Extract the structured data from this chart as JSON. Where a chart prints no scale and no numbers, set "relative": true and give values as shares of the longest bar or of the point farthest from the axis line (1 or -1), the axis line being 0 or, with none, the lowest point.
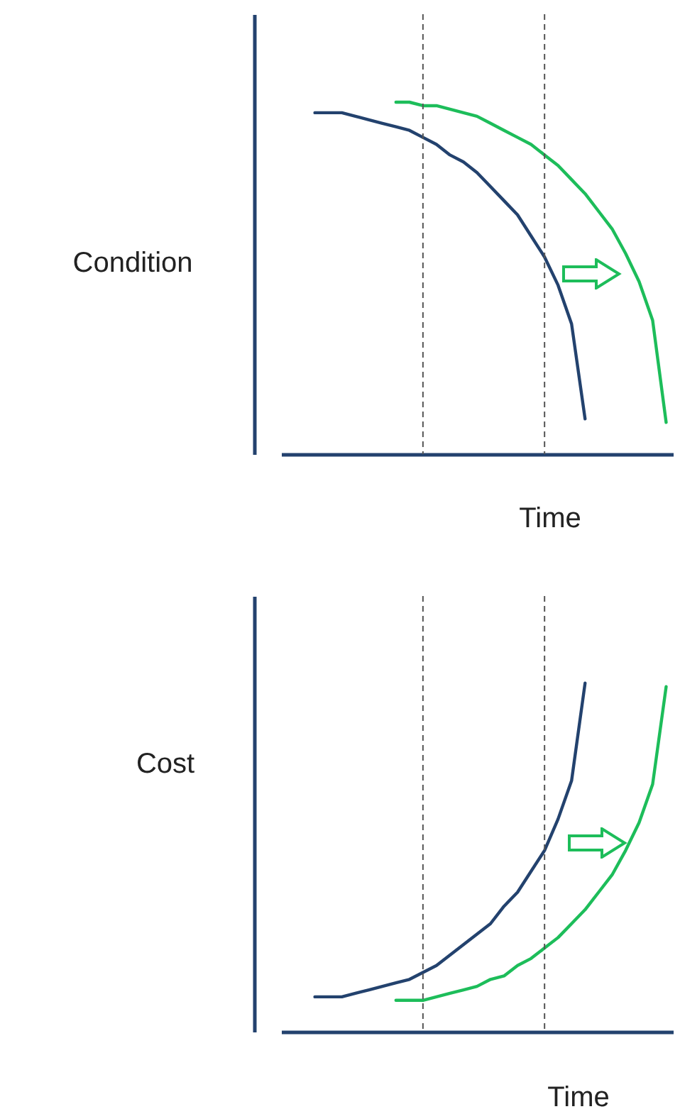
{
  "chart_data": [
    {
      "type": "line",
      "relative": true,
      "ylabel": "Condition",
      "xlabel": "Time",
      "categories": [
        null,
        null,
        null,
        null,
        null,
        null,
        null,
        null,
        null,
        null,
        null,
        null,
        null,
        null,
        null,
        null,
        null,
        null,
        null,
        null,
        null,
        null,
        null,
        null,
        null,
        null,
        null,
        null,
        null
      ],
      "series": [
        {
          "color": "#23426e",
          "values": [
            null,
            null,
            0.97,
            0.97,
            0.97,
            0.96,
            0.95,
            0.94,
            0.93,
            0.92,
            0.9,
            0.88,
            0.85,
            0.83,
            0.8,
            0.76,
            0.72,
            0.68,
            0.62,
            0.56,
            0.48,
            0.37,
            0.1,
            null,
            null,
            null,
            null,
            null,
            null
          ]
        },
        {
          "color": "#1dbd5a",
          "values": [
            null,
            null,
            null,
            null,
            null,
            null,
            null,
            null,
            1.0,
            1.0,
            0.99,
            0.99,
            0.98,
            0.97,
            0.96,
            0.94,
            0.92,
            0.9,
            0.88,
            0.85,
            0.82,
            0.78,
            0.74,
            0.69,
            0.64,
            0.57,
            0.49,
            0.38,
            0.09
          ]
        }
      ]
    },
    {
      "type": "line",
      "relative": true,
      "ylabel": "Cost",
      "xlabel": "Time",
      "categories": [
        null,
        null,
        null,
        null,
        null,
        null,
        null,
        null,
        null,
        null,
        null,
        null,
        null,
        null,
        null,
        null,
        null,
        null,
        null,
        null,
        null,
        null,
        null,
        null,
        null,
        null,
        null,
        null,
        null
      ],
      "series": [
        {
          "color": "#23426e",
          "values": [
            null,
            null,
            0.1,
            0.1,
            0.1,
            0.11,
            0.12,
            0.13,
            0.14,
            0.15,
            0.17,
            0.19,
            0.22,
            0.25,
            0.28,
            0.31,
            0.36,
            0.4,
            0.46,
            0.52,
            0.61,
            0.72,
            1.0,
            null,
            null,
            null,
            null,
            null,
            null
          ]
        },
        {
          "color": "#1dbd5a",
          "values": [
            null,
            null,
            null,
            null,
            null,
            null,
            null,
            null,
            0.09,
            0.09,
            0.09,
            0.1,
            0.11,
            0.12,
            0.13,
            0.15,
            0.16,
            0.19,
            0.21,
            0.24,
            0.27,
            0.31,
            0.35,
            0.4,
            0.45,
            0.52,
            0.6,
            0.71,
            0.99
          ]
        }
      ]
    }
  ]
}
